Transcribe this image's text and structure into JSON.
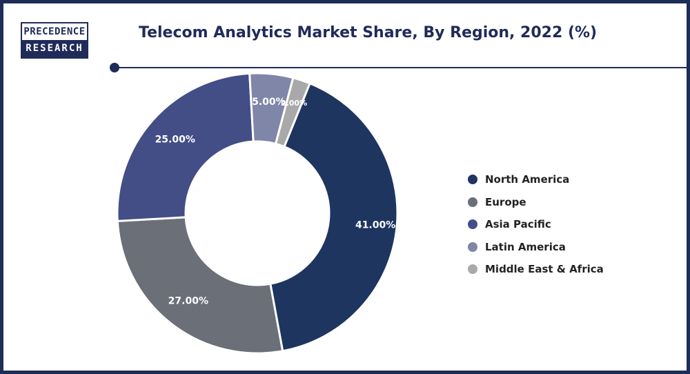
{
  "logo": {
    "top_text": "PRECEDENCE",
    "bottom_text": "RESEARCH"
  },
  "header": {
    "title": "Telecom Analytics Market Share, By Region, 2022 (%)"
  },
  "colors": {
    "brand": "#1f2b59",
    "north_america": "#1e3560",
    "europe": "#6b6f77",
    "asia_pacific": "#434d86",
    "latin_america": "#7f86a8",
    "middle_east_africa": "#a9a9a9"
  },
  "chart_data": {
    "type": "pie",
    "variant": "donut",
    "categories": [
      "North America",
      "Europe",
      "Asia Pacific",
      "Latin America",
      "Middle East & Africa"
    ],
    "values": [
      41,
      27,
      25,
      5,
      2
    ],
    "labels": [
      "41.00%",
      "27.00%",
      "25.00%",
      "5.00%",
      "2.00%"
    ],
    "colors": [
      "#1e3560",
      "#6b6f77",
      "#434d86",
      "#7f86a8",
      "#a9a9a9"
    ],
    "unit": "%",
    "legend_position": "right"
  }
}
